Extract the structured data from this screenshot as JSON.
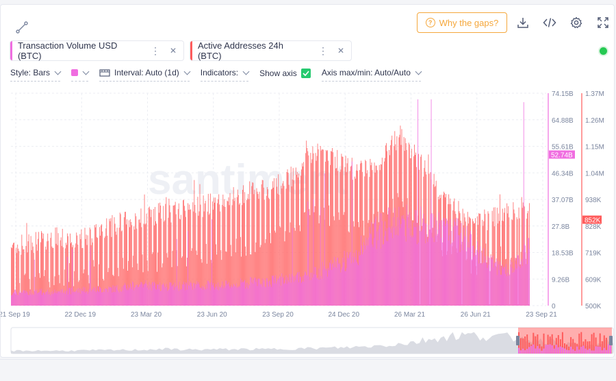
{
  "toolbar": {
    "why_gaps_label": "Why the gaps?",
    "icons": [
      "line-draw-icon",
      "download-icon",
      "embed-code-icon",
      "gear-icon",
      "fullscreen-icon"
    ]
  },
  "metrics": [
    {
      "label": "Transaction Volume USD (BTC)",
      "color": "#f06de0"
    },
    {
      "label": "Active Addresses 24h (BTC)",
      "color": "#ff5b5b"
    }
  ],
  "settings": {
    "style": "Style: Bars",
    "interval": "Interval: Auto (1d)",
    "indicators": "Indicators:",
    "show_axis": "Show axis",
    "axis_minmax": "Axis max/min: Auto/Auto"
  },
  "chart_data": {
    "type": "bar",
    "x_ticks": [
      "21 Sep 19",
      "22 Dec 19",
      "23 Mar 20",
      "23 Jun 20",
      "23 Sep 20",
      "24 Dec 20",
      "26 Mar 21",
      "26 Jun 21",
      "23 Sep 21"
    ],
    "x_range": [
      "2019-09-21",
      "2021-09-23"
    ],
    "series": [
      {
        "name": "Transaction Volume USD (BTC)",
        "color": "#f06de0",
        "axis_ticks": [
          "74.15B",
          "64.88B",
          "55.61B",
          "46.34B",
          "37.07B",
          "27.8B",
          "18.53B",
          "9.26B",
          "0"
        ],
        "ylim": [
          0,
          74.15
        ],
        "unit": "B",
        "last_value_label": "52.74B",
        "last_value": 52.74,
        "monthly_values": [
          4.5,
          4.8,
          4.6,
          5.2,
          5.6,
          6.0,
          7.5,
          6.5,
          6.8,
          7.2,
          7.0,
          8.0,
          8.5,
          9.5,
          11.0,
          14.0,
          18.0,
          26.0,
          30.0,
          28.0,
          26.0,
          24.0,
          16.0,
          12.0,
          20.0
        ]
      },
      {
        "name": "Active Addresses 24h (BTC)",
        "color": "#ff5b5b",
        "axis_ticks": [
          "1.37M",
          "1.26M",
          "1.15M",
          "1.04M",
          "938K",
          "828K",
          "719K",
          "609K",
          "500K"
        ],
        "ylim": [
          500,
          1370
        ],
        "unit": "K",
        "last_value_label": "852K",
        "last_value": 852,
        "monthly_values": [
          740,
          760,
          780,
          770,
          800,
          840,
          860,
          880,
          890,
          910,
          940,
          960,
          980,
          1030,
          1140,
          1100,
          1050,
          1080,
          1200,
          1080,
          950,
          860,
          850,
          880,
          880
        ]
      }
    ],
    "grid": true,
    "watermark": "santiment"
  }
}
